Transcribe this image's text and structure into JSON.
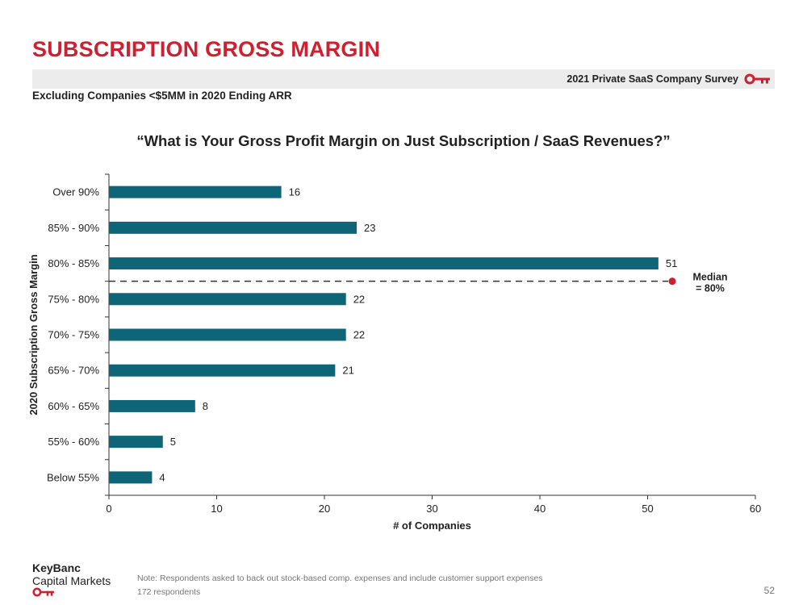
{
  "header": {
    "title": "SUBSCRIPTION GROSS MARGIN",
    "survey_label": "2021 Private SaaS Company Survey",
    "subtitle": "Excluding Companies <$5MM in 2020 Ending ARR"
  },
  "chart_data": {
    "type": "bar",
    "orientation": "horizontal",
    "title": "“What is Your Gross Profit Margin on Just Subscription / SaaS Revenues?”",
    "xlabel": "# of Companies",
    "ylabel": "2020 Subscription Gross Margin",
    "categories": [
      "Over 90%",
      "85% - 90%",
      "80% - 85%",
      "75% - 80%",
      "70% - 75%",
      "65% - 70%",
      "60% - 65%",
      "55% - 60%",
      "Below 55%"
    ],
    "values": [
      16,
      23,
      51,
      22,
      22,
      21,
      8,
      5,
      4
    ],
    "xlim": [
      0,
      60
    ],
    "xticks": [
      0,
      10,
      20,
      30,
      40,
      50,
      60
    ],
    "grid": false,
    "bar_color": "#0e6577",
    "annotation": {
      "label_line1": "Median",
      "label_line2": "= 80%",
      "between_categories": [
        "80% - 85%",
        "75% - 80%"
      ],
      "marker_color": "#d0202f"
    }
  },
  "footer": {
    "brand_line1": "KeyBanc",
    "brand_line2": "Capital Markets",
    "note": "Note: Respondents asked to back out stock-based comp. expenses and include customer support expenses",
    "respondents": "172 respondents",
    "page_number": "52"
  },
  "colors": {
    "accent": "#d0202f",
    "bar": "#0e6577",
    "band": "#ececec"
  }
}
